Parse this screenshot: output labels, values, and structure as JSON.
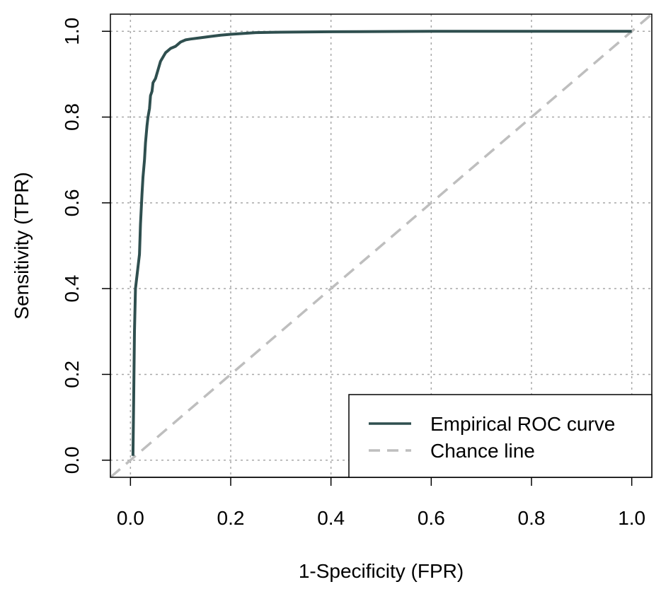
{
  "chart_data": {
    "type": "line",
    "xlabel": "1-Specificity (FPR)",
    "ylabel": "Sensitivity (TPR)",
    "xlim": [
      -0.04,
      1.04
    ],
    "ylim": [
      -0.04,
      1.04
    ],
    "xticks": [
      0.0,
      0.2,
      0.4,
      0.6,
      0.8,
      1.0
    ],
    "yticks": [
      0.0,
      0.2,
      0.4,
      0.6,
      0.8,
      1.0
    ],
    "xtick_labels": [
      "0.0",
      "0.2",
      "0.4",
      "0.6",
      "0.8",
      "1.0"
    ],
    "ytick_labels": [
      "0.0",
      "0.2",
      "0.4",
      "0.6",
      "0.8",
      "1.0"
    ],
    "grid": true,
    "legend_position": "bottom-right",
    "series": [
      {
        "name": "Empirical ROC curve",
        "color": "#2f4f4f",
        "style": "solid",
        "x": [
          0.005,
          0.006,
          0.008,
          0.01,
          0.012,
          0.015,
          0.018,
          0.02,
          0.023,
          0.025,
          0.028,
          0.03,
          0.033,
          0.035,
          0.038,
          0.04,
          0.043,
          0.045,
          0.05,
          0.055,
          0.06,
          0.065,
          0.07,
          0.075,
          0.08,
          0.09,
          0.1,
          0.11,
          0.12,
          0.14,
          0.16,
          0.18,
          0.2,
          0.25,
          0.3,
          0.4,
          0.6,
          0.8,
          1.0
        ],
        "y": [
          0.01,
          0.1,
          0.3,
          0.4,
          0.42,
          0.45,
          0.48,
          0.55,
          0.62,
          0.66,
          0.7,
          0.74,
          0.78,
          0.8,
          0.82,
          0.85,
          0.86,
          0.88,
          0.89,
          0.91,
          0.93,
          0.94,
          0.95,
          0.955,
          0.96,
          0.965,
          0.975,
          0.98,
          0.982,
          0.985,
          0.988,
          0.991,
          0.993,
          0.997,
          0.998,
          0.999,
          1.0,
          1.0,
          1.0
        ]
      },
      {
        "name": "Chance line",
        "color": "#bebebe",
        "style": "dashed",
        "x": [
          -0.04,
          1.04
        ],
        "y": [
          -0.04,
          1.04
        ]
      }
    ]
  }
}
